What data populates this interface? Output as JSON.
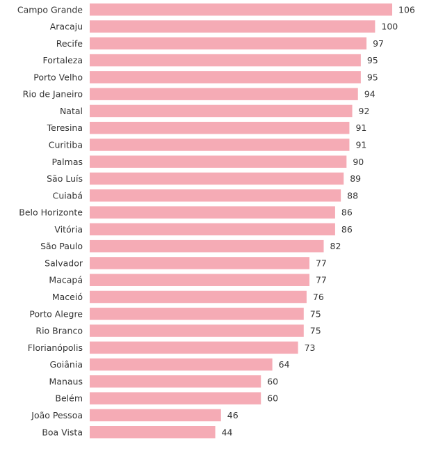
{
  "colors": {
    "bar": "#f5abb5",
    "text": "#333333"
  },
  "chart_data": {
    "type": "bar",
    "orientation": "horizontal",
    "categories": [
      "Campo Grande",
      "Aracaju",
      "Recife",
      "Fortaleza",
      "Porto Velho",
      "Rio de Janeiro",
      "Natal",
      "Teresina",
      "Curitiba",
      "Palmas",
      "São Luís",
      "Cuiabá",
      "Belo Horizonte",
      "Vitória",
      "São Paulo",
      "Salvador",
      "Macapá",
      "Maceió",
      "Porto Alegre",
      "Rio Branco",
      "Florianópolis",
      "Goiânia",
      "Manaus",
      "Belém",
      "João Pessoa",
      "Boa Vista"
    ],
    "values": [
      106,
      100,
      97,
      95,
      95,
      94,
      92,
      91,
      91,
      90,
      89,
      88,
      86,
      86,
      82,
      77,
      77,
      76,
      75,
      75,
      73,
      64,
      60,
      60,
      46,
      44
    ],
    "data_labels": [
      "106",
      "100",
      "97",
      "95",
      "95",
      "94",
      "92",
      "91",
      "91",
      "90",
      "89",
      "88",
      "86",
      "86",
      "82",
      "77",
      "77",
      "76",
      "75",
      "75",
      "73",
      "64",
      "60",
      "60",
      "46",
      "44"
    ],
    "xlim": [
      0,
      106
    ],
    "grid": false,
    "legend": "none"
  }
}
